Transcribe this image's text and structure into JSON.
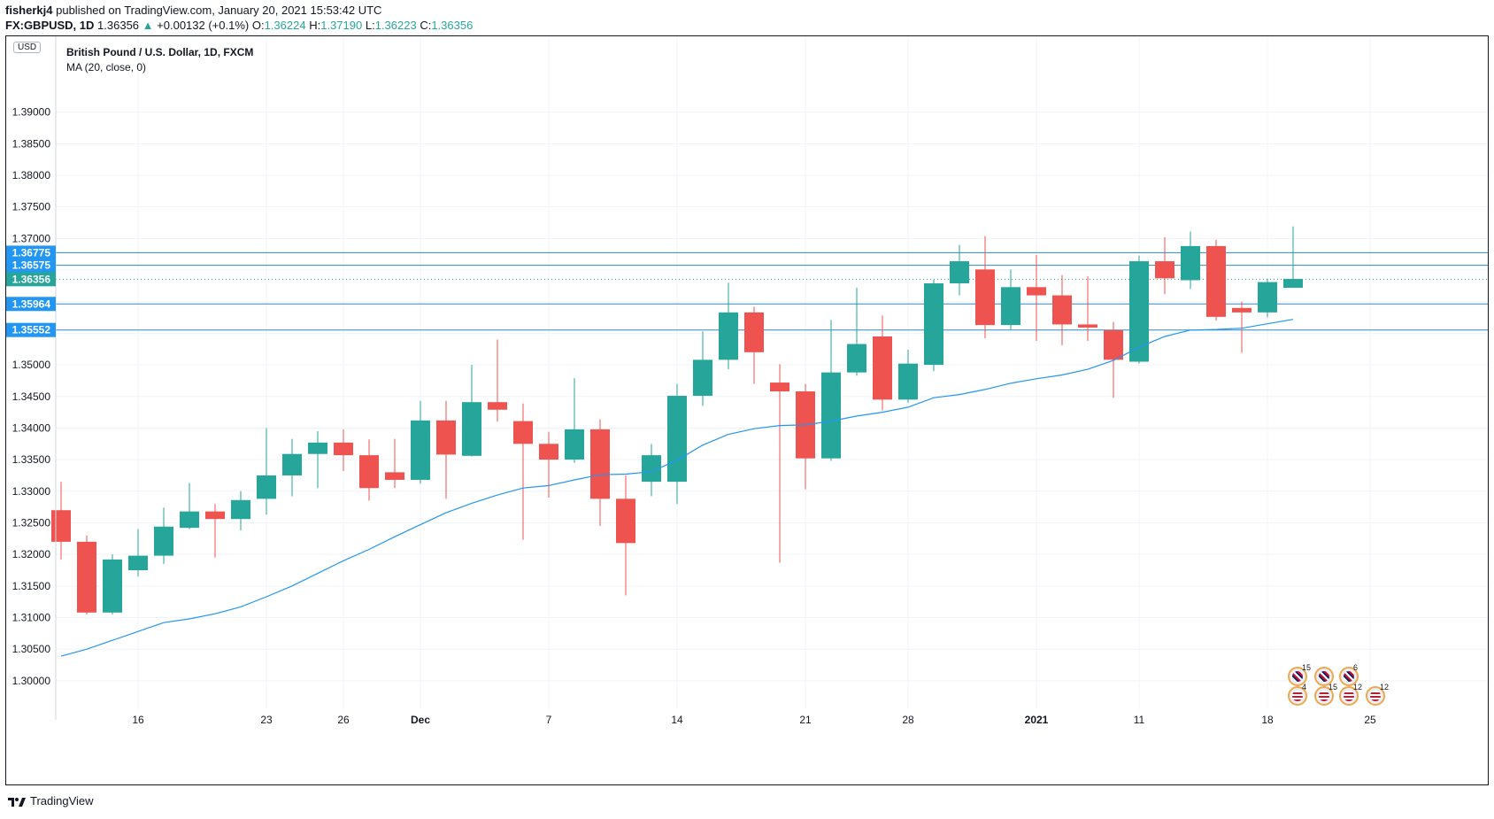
{
  "header": {
    "publisher": "fisherkj4",
    "published_text": "published on TradingView.com, January 20, 2021 15:53:42 UTC",
    "symbol": "FX:GBPUSD, 1D",
    "last": "1.36356",
    "change": "+0.00132 (+0.1%)",
    "o_label": "O:",
    "o_value": "1.36224",
    "h_label": "H:",
    "h_value": "1.37190",
    "l_label": "L:",
    "l_value": "1.36223",
    "c_label": "C:",
    "c_value": "1.36356"
  },
  "legend": {
    "title": "British Pound / U.S. Dollar, 1D, FXCM",
    "indicator": "MA (20, close, 0)"
  },
  "currency_badge": "USD",
  "footer": {
    "brand": "TradingView"
  },
  "colors": {
    "up": "#26a69a",
    "down": "#ef5350",
    "ma": "#2196f3",
    "hline": "#2e8ac6",
    "label": "#2196f3"
  },
  "chart_data": {
    "type": "candlestick",
    "ylim": [
      1.2955,
      1.402
    ],
    "yticks": [
      "1.30000",
      "1.30500",
      "1.31000",
      "1.31500",
      "1.32000",
      "1.32500",
      "1.33000",
      "1.33500",
      "1.34000",
      "1.34500",
      "1.35000",
      "1.35500",
      "1.36000",
      "1.36500",
      "1.37000",
      "1.37500",
      "1.38000",
      "1.38500",
      "1.39000"
    ],
    "xticks": [
      {
        "i": 3,
        "label": "16"
      },
      {
        "i": 8,
        "label": "23"
      },
      {
        "i": 11,
        "label": "26"
      },
      {
        "i": 14,
        "label": "Dec"
      },
      {
        "i": 19,
        "label": "7"
      },
      {
        "i": 24,
        "label": "14"
      },
      {
        "i": 29,
        "label": "21"
      },
      {
        "i": 33,
        "label": "28"
      },
      {
        "i": 38,
        "label": "2021"
      },
      {
        "i": 42,
        "label": "11"
      },
      {
        "i": 47,
        "label": "18"
      },
      {
        "i": 51,
        "label": "25"
      }
    ],
    "candles": [
      [
        1.327,
        1.3315,
        1.3192,
        1.322
      ],
      [
        1.322,
        1.323,
        1.3105,
        1.3108
      ],
      [
        1.3108,
        1.32,
        1.3105,
        1.3192
      ],
      [
        1.3175,
        1.324,
        1.3165,
        1.3198
      ],
      [
        1.3198,
        1.3274,
        1.3185,
        1.3244
      ],
      [
        1.3242,
        1.3313,
        1.324,
        1.3268
      ],
      [
        1.3268,
        1.328,
        1.3195,
        1.3256
      ],
      [
        1.3256,
        1.33,
        1.3238,
        1.3286
      ],
      [
        1.3288,
        1.34,
        1.3263,
        1.3325
      ],
      [
        1.3325,
        1.3383,
        1.3292,
        1.3359
      ],
      [
        1.3359,
        1.3395,
        1.3305,
        1.3377
      ],
      [
        1.3377,
        1.3398,
        1.3332,
        1.3357
      ],
      [
        1.3357,
        1.3382,
        1.3285,
        1.3305
      ],
      [
        1.333,
        1.3383,
        1.3305,
        1.3318
      ],
      [
        1.3318,
        1.3443,
        1.3312,
        1.3412
      ],
      [
        1.3412,
        1.3443,
        1.3288,
        1.3358
      ],
      [
        1.3356,
        1.35,
        1.3355,
        1.3441
      ],
      [
        1.3441,
        1.354,
        1.341,
        1.3429
      ],
      [
        1.3411,
        1.3439,
        1.3223,
        1.3375
      ],
      [
        1.3375,
        1.3394,
        1.329,
        1.335
      ],
      [
        1.335,
        1.3479,
        1.3345,
        1.3398
      ],
      [
        1.3398,
        1.3414,
        1.3245,
        1.3288
      ],
      [
        1.3288,
        1.3325,
        1.3135,
        1.3218
      ],
      [
        1.3315,
        1.3375,
        1.3292,
        1.3357
      ],
      [
        1.3315,
        1.347,
        1.328,
        1.3451
      ],
      [
        1.3451,
        1.3553,
        1.3435,
        1.3508
      ],
      [
        1.3508,
        1.363,
        1.3493,
        1.3583
      ],
      [
        1.3583,
        1.3592,
        1.347,
        1.352
      ],
      [
        1.3472,
        1.3501,
        1.3187,
        1.3458
      ],
      [
        1.3458,
        1.347,
        1.3303,
        1.3352
      ],
      [
        1.3352,
        1.3571,
        1.3348,
        1.3488
      ],
      [
        1.3488,
        1.3622,
        1.3483,
        1.3533
      ],
      [
        1.3545,
        1.3578,
        1.3428,
        1.3445
      ],
      [
        1.3445,
        1.3524,
        1.344,
        1.3502
      ],
      [
        1.35,
        1.3635,
        1.349,
        1.3629
      ],
      [
        1.3629,
        1.369,
        1.361,
        1.3664
      ],
      [
        1.3651,
        1.3704,
        1.3542,
        1.3563
      ],
      [
        1.3563,
        1.3651,
        1.3555,
        1.3623
      ],
      [
        1.3623,
        1.3674,
        1.3538,
        1.361
      ],
      [
        1.361,
        1.3642,
        1.3531,
        1.3564
      ],
      [
        1.3564,
        1.364,
        1.3538,
        1.3559
      ],
      [
        1.3555,
        1.3568,
        1.3448,
        1.3508
      ],
      [
        1.3505,
        1.3673,
        1.3502,
        1.3664
      ],
      [
        1.3664,
        1.3702,
        1.3612,
        1.3637
      ],
      [
        1.3634,
        1.3711,
        1.362,
        1.3688
      ],
      [
        1.3688,
        1.3698,
        1.357,
        1.3576
      ],
      [
        1.359,
        1.36,
        1.3519,
        1.3583
      ],
      [
        1.3583,
        1.3636,
        1.3575,
        1.3631
      ],
      [
        1.3622,
        1.3719,
        1.3622,
        1.3636
      ]
    ],
    "ma": [
      1.3039,
      1.305,
      1.3064,
      1.3078,
      1.3092,
      1.3098,
      1.3106,
      1.3117,
      1.3133,
      1.315,
      1.317,
      1.319,
      1.3208,
      1.3228,
      1.3247,
      1.3266,
      1.3281,
      1.3294,
      1.3305,
      1.3309,
      1.3318,
      1.3326,
      1.3327,
      1.3331,
      1.3349,
      1.3373,
      1.339,
      1.3399,
      1.3404,
      1.3405,
      1.3411,
      1.3419,
      1.3425,
      1.3433,
      1.3448,
      1.3453,
      1.3461,
      1.3471,
      1.3478,
      1.3484,
      1.3493,
      1.3507,
      1.3528,
      1.3545,
      1.3555,
      1.3556,
      1.3558,
      1.3565,
      1.3572
    ],
    "levels": [
      {
        "value": 1.36775,
        "label": "1.36775",
        "style": "solid"
      },
      {
        "value": 1.36575,
        "label": "1.36575",
        "style": "solid"
      },
      {
        "value": 1.36356,
        "label": "1.36356",
        "style": "dotted"
      },
      {
        "value": 1.35964,
        "label": "1.35964",
        "style": "solid"
      },
      {
        "value": 1.35552,
        "label": "1.35552",
        "style": "solid"
      }
    ]
  },
  "events": [
    {
      "country": "uk",
      "count": "15"
    },
    {
      "country": "uk",
      "count": ""
    },
    {
      "country": "uk",
      "count": "6"
    },
    {
      "country": "us",
      "count": "4"
    },
    {
      "country": "us",
      "count": "15"
    },
    {
      "country": "us",
      "count": "12"
    },
    {
      "country": "us",
      "count": "12"
    }
  ]
}
